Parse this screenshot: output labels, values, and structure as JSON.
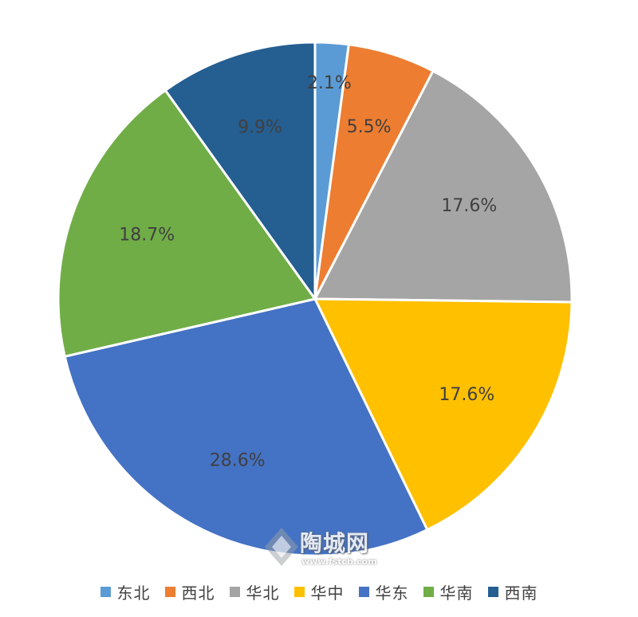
{
  "chart_data": {
    "type": "pie",
    "categories": [
      "东北",
      "西北",
      "华北",
      "华中",
      "华东",
      "华南",
      "西南"
    ],
    "values": [
      2.1,
      5.5,
      17.6,
      17.6,
      28.6,
      18.7,
      9.9
    ],
    "value_labels": [
      "2.1%",
      "5.5%",
      "17.6%",
      "17.6%",
      "28.6%",
      "18.7%",
      "9.9%"
    ],
    "colors": [
      "#5b9bd5",
      "#ed7d31",
      "#a5a5a5",
      "#ffc000",
      "#4472c4",
      "#70ad47",
      "#255e91"
    ],
    "start_angle_deg": 0,
    "direction": "clockwise",
    "legend_position": "bottom",
    "title": ""
  },
  "watermark": {
    "text": "陶城网",
    "url": "www.fstcb.com"
  }
}
